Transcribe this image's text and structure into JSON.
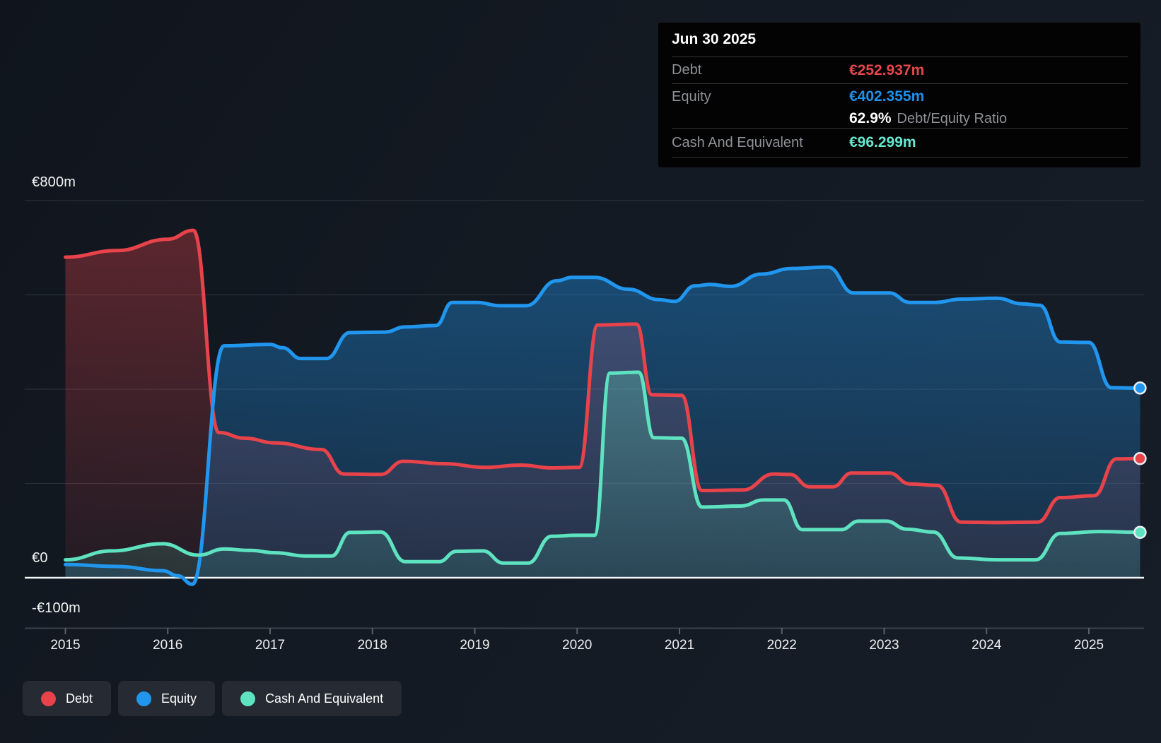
{
  "tooltip": {
    "date": "Jun 30 2025",
    "debt_label": "Debt",
    "debt_value": "€252.937m",
    "equity_label": "Equity",
    "equity_value": "€402.355m",
    "ratio_value": "62.9%",
    "ratio_label": "Debt/Equity Ratio",
    "cash_label": "Cash And Equivalent",
    "cash_value": "€96.299m"
  },
  "axis": {
    "y_top": "€800m",
    "y_zero": "€0",
    "y_neg": "-€100m"
  },
  "legend": {
    "debt": "Debt",
    "equity": "Equity",
    "cash": "Cash And Equivalent"
  },
  "colors": {
    "debt": "#e8434a",
    "equity": "#2196ee",
    "cash": "#5ee3c1",
    "debt_value_text": "#e8474b",
    "equity_value_text": "#1e90ea",
    "cash_value_text": "#67e8cf",
    "gridline": "#2a303a",
    "zero_line": "#f2f5f7",
    "axis_line": "#3c424b",
    "tick": "#596069"
  },
  "chart_data": {
    "type": "area",
    "title": "Debt to Equity history",
    "x_unit": "decimal_year",
    "xlim": [
      2014.6,
      2025.54
    ],
    "ylim": [
      -106,
      836
    ],
    "grid": "horizontal",
    "y_gridline_values": [
      800,
      600,
      400,
      200
    ],
    "zero_line_value": 0,
    "x_ticks": [
      2015,
      2016,
      2017,
      2018,
      2019,
      2020,
      2021,
      2022,
      2023,
      2024,
      2025
    ],
    "x_tick_labels": [
      "2015",
      "2016",
      "2017",
      "2018",
      "2019",
      "2020",
      "2021",
      "2022",
      "2023",
      "2024",
      "2025"
    ],
    "legend_position": "bottom-left",
    "values_in": "EUR millions",
    "series": [
      {
        "name": "Debt",
        "color": "#e8434a",
        "points": [
          [
            2015.0,
            680
          ],
          [
            2015.5,
            694
          ],
          [
            2016.0,
            718
          ],
          [
            2016.25,
            737
          ],
          [
            2016.5,
            308
          ],
          [
            2016.75,
            296
          ],
          [
            2017.05,
            286
          ],
          [
            2017.5,
            272
          ],
          [
            2017.72,
            220
          ],
          [
            2018.08,
            219
          ],
          [
            2018.3,
            247
          ],
          [
            2018.7,
            242
          ],
          [
            2019.1,
            234
          ],
          [
            2019.45,
            239
          ],
          [
            2019.75,
            233
          ],
          [
            2020.02,
            234
          ],
          [
            2020.2,
            536
          ],
          [
            2020.58,
            538
          ],
          [
            2020.73,
            388
          ],
          [
            2021.02,
            387
          ],
          [
            2021.22,
            185
          ],
          [
            2021.62,
            186
          ],
          [
            2021.92,
            220
          ],
          [
            2022.08,
            219
          ],
          [
            2022.27,
            193
          ],
          [
            2022.5,
            193
          ],
          [
            2022.68,
            222
          ],
          [
            2023.05,
            222
          ],
          [
            2023.25,
            199
          ],
          [
            2023.52,
            196
          ],
          [
            2023.75,
            118
          ],
          [
            2024.1,
            117
          ],
          [
            2024.5,
            118
          ],
          [
            2024.72,
            170
          ],
          [
            2025.05,
            174
          ],
          [
            2025.27,
            252
          ],
          [
            2025.5,
            252.937
          ]
        ]
      },
      {
        "name": "Equity",
        "color": "#2196ee",
        "points": [
          [
            2015.0,
            28
          ],
          [
            2015.5,
            24
          ],
          [
            2015.95,
            15
          ],
          [
            2016.1,
            4
          ],
          [
            2016.24,
            -14
          ],
          [
            2016.55,
            492
          ],
          [
            2017.0,
            495
          ],
          [
            2017.12,
            488
          ],
          [
            2017.3,
            465
          ],
          [
            2017.55,
            465
          ],
          [
            2017.78,
            520
          ],
          [
            2018.12,
            521
          ],
          [
            2018.32,
            532
          ],
          [
            2018.62,
            535
          ],
          [
            2018.78,
            584
          ],
          [
            2019.02,
            584
          ],
          [
            2019.25,
            577
          ],
          [
            2019.5,
            577
          ],
          [
            2019.8,
            630
          ],
          [
            2019.95,
            637
          ],
          [
            2020.17,
            637
          ],
          [
            2020.5,
            612
          ],
          [
            2020.8,
            590
          ],
          [
            2020.95,
            586
          ],
          [
            2021.15,
            619
          ],
          [
            2021.3,
            622
          ],
          [
            2021.5,
            618
          ],
          [
            2021.8,
            644
          ],
          [
            2022.1,
            656
          ],
          [
            2022.45,
            659
          ],
          [
            2022.7,
            604
          ],
          [
            2023.05,
            604
          ],
          [
            2023.25,
            584
          ],
          [
            2023.5,
            584
          ],
          [
            2023.75,
            591
          ],
          [
            2024.1,
            593
          ],
          [
            2024.35,
            581
          ],
          [
            2024.52,
            578
          ],
          [
            2024.72,
            500
          ],
          [
            2025.0,
            499
          ],
          [
            2025.22,
            403
          ],
          [
            2025.5,
            402.355
          ]
        ]
      },
      {
        "name": "Cash And Equivalent",
        "color": "#5ee3c1",
        "points": [
          [
            2015.0,
            38
          ],
          [
            2015.45,
            57
          ],
          [
            2015.95,
            72
          ],
          [
            2016.3,
            48
          ],
          [
            2016.55,
            61
          ],
          [
            2016.8,
            58
          ],
          [
            2017.05,
            53
          ],
          [
            2017.35,
            46
          ],
          [
            2017.6,
            46
          ],
          [
            2017.78,
            96
          ],
          [
            2018.08,
            97
          ],
          [
            2018.32,
            34
          ],
          [
            2018.65,
            34
          ],
          [
            2018.82,
            56
          ],
          [
            2019.08,
            57
          ],
          [
            2019.28,
            31
          ],
          [
            2019.52,
            31
          ],
          [
            2019.75,
            88
          ],
          [
            2020.0,
            90
          ],
          [
            2020.17,
            90
          ],
          [
            2020.32,
            434
          ],
          [
            2020.6,
            436
          ],
          [
            2020.75,
            297
          ],
          [
            2021.02,
            296
          ],
          [
            2021.22,
            150
          ],
          [
            2021.6,
            152
          ],
          [
            2021.82,
            165
          ],
          [
            2022.02,
            165
          ],
          [
            2022.2,
            102
          ],
          [
            2022.58,
            102
          ],
          [
            2022.75,
            120
          ],
          [
            2023.02,
            120
          ],
          [
            2023.22,
            103
          ],
          [
            2023.48,
            97
          ],
          [
            2023.72,
            42
          ],
          [
            2024.1,
            38
          ],
          [
            2024.48,
            38
          ],
          [
            2024.72,
            94
          ],
          [
            2025.1,
            98
          ],
          [
            2025.5,
            96.299
          ]
        ]
      }
    ],
    "end_markers": [
      {
        "series": "Debt",
        "x": 2025.5,
        "y": 252.937
      },
      {
        "series": "Equity",
        "x": 2025.5,
        "y": 402.355
      },
      {
        "series": "Cash And Equivalent",
        "x": 2025.5,
        "y": 96.299
      }
    ]
  }
}
